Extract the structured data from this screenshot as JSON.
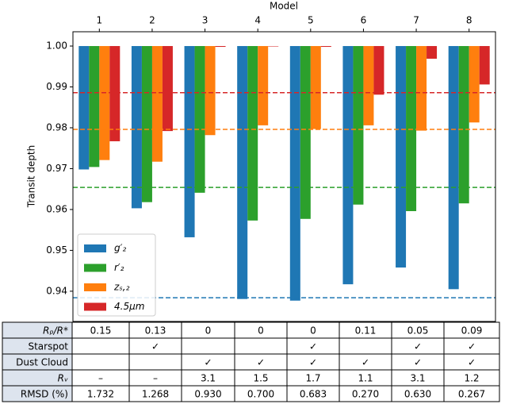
{
  "chart_data": {
    "type": "bar",
    "bottom": 1,
    "x_label": "Model",
    "y_label": "Transit depth",
    "categories": [
      "1",
      "2",
      "3",
      "4",
      "5",
      "6",
      "7",
      "8"
    ],
    "series": [
      {
        "name": "g′₂",
        "color": "#1f77b4",
        "values": [
          0.9698,
          0.9603,
          0.9532,
          0.9381,
          0.9377,
          0.9417,
          0.9458,
          0.9405
        ]
      },
      {
        "name": "r′₂",
        "color": "#2ca02c",
        "values": [
          0.9704,
          0.9618,
          0.9641,
          0.9573,
          0.9577,
          0.9612,
          0.9596,
          0.9615
        ]
      },
      {
        "name": "zₛ,₂",
        "color": "#ff7f0e",
        "values": [
          0.9721,
          0.9717,
          0.9782,
          0.9806,
          0.9797,
          0.9806,
          0.9793,
          0.9813
        ]
      },
      {
        "name": "4.5μm",
        "color": "#d62728",
        "values": [
          0.9767,
          0.9792,
          0.9998,
          0.9999,
          0.9998,
          0.9881,
          0.9969,
          0.9906
        ]
      }
    ],
    "reference_lines": [
      {
        "value": 0.9384,
        "color": "#1f77b4"
      },
      {
        "value": 0.9654,
        "color": "#2ca02c"
      },
      {
        "value": 0.9796,
        "color": "#ff7f0e"
      },
      {
        "value": 0.9886,
        "color": "#d62728"
      }
    ],
    "ylim": [
      0.9326,
      1.0035
    ],
    "yticks": [
      0.94,
      0.95,
      0.96,
      0.97,
      0.98,
      0.99,
      {
        "value": 1,
        "label": "1.00"
      }
    ],
    "legend": "lower left"
  },
  "table": {
    "rows": [
      [
        "Rₚ/R*",
        "0.15",
        "0.13",
        "0",
        "0",
        "0",
        "0.11",
        "0.05",
        "0.09"
      ],
      [
        "Starspot",
        null,
        "✓",
        null,
        null,
        "✓",
        null,
        "✓",
        "✓"
      ],
      [
        "Dust Cloud",
        null,
        null,
        "✓",
        "✓",
        "✓",
        "✓",
        "✓",
        "✓"
      ],
      [
        "Rᵥ",
        "–",
        "–",
        "3.1",
        "1.5",
        "1.7",
        "1.1",
        "3.1",
        "1.2"
      ],
      [
        "RMSD (%)",
        "1.732",
        "1.268",
        "0.930",
        "0.700",
        "0.683",
        "0.270",
        "0.630",
        "0.267"
      ]
    ]
  }
}
